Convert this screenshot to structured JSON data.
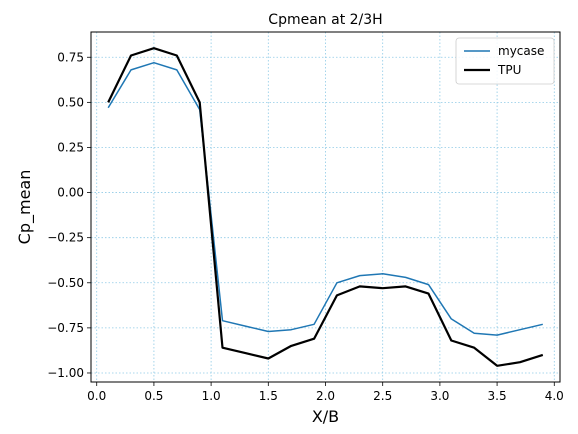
{
  "chart_data": {
    "type": "line",
    "title": "Cpmean at 2/3H",
    "xlabel": "X/B",
    "ylabel": "Cp_mean",
    "xlim": [
      -0.05,
      4.05
    ],
    "ylim": [
      -1.05,
      0.89
    ],
    "xticks": [
      0.0,
      0.5,
      1.0,
      1.5,
      2.0,
      2.5,
      3.0,
      3.5,
      4.0
    ],
    "xtick_labels": [
      "0.0",
      "0.5",
      "1.0",
      "1.5",
      "2.0",
      "2.5",
      "3.0",
      "3.5",
      "4.0"
    ],
    "yticks": [
      -1.0,
      -0.75,
      -0.5,
      -0.25,
      0.0,
      0.25,
      0.5,
      0.75
    ],
    "ytick_labels": [
      "−1.00",
      "−0.75",
      "−0.50",
      "−0.25",
      "0.00",
      "0.25",
      "0.50",
      "0.75"
    ],
    "grid": true,
    "legend_position": "top-right",
    "series": [
      {
        "name": "mycase",
        "color": "#1f77b4",
        "line_width": "thin",
        "x": [
          0.1,
          0.3,
          0.5,
          0.7,
          0.9,
          1.1,
          1.3,
          1.5,
          1.7,
          1.9,
          2.1,
          2.3,
          2.5,
          2.7,
          2.9,
          3.1,
          3.3,
          3.5,
          3.7,
          3.9
        ],
        "y": [
          0.47,
          0.68,
          0.72,
          0.68,
          0.46,
          -0.71,
          -0.74,
          -0.77,
          -0.76,
          -0.73,
          -0.5,
          -0.46,
          -0.45,
          -0.47,
          -0.51,
          -0.7,
          -0.78,
          -0.79,
          -0.76,
          -0.73
        ]
      },
      {
        "name": "TPU",
        "color": "#000000",
        "line_width": "thick",
        "x": [
          0.1,
          0.3,
          0.5,
          0.7,
          0.9,
          1.1,
          1.3,
          1.5,
          1.7,
          1.9,
          2.1,
          2.3,
          2.5,
          2.7,
          2.9,
          3.1,
          3.3,
          3.5,
          3.7,
          3.9
        ],
        "y": [
          0.5,
          0.76,
          0.8,
          0.76,
          0.5,
          -0.86,
          -0.89,
          -0.92,
          -0.85,
          -0.81,
          -0.57,
          -0.52,
          -0.53,
          -0.52,
          -0.56,
          -0.82,
          -0.86,
          -0.96,
          -0.94,
          -0.9
        ]
      }
    ]
  }
}
